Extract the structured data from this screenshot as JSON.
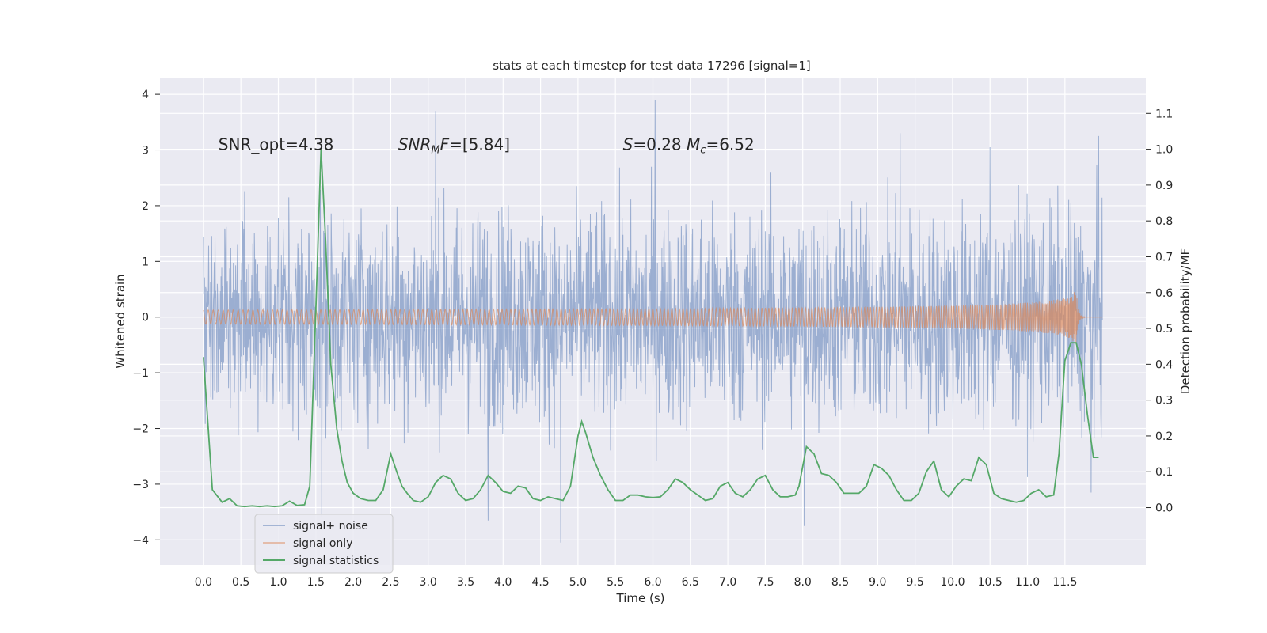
{
  "chart_data": {
    "type": "line",
    "title": "stats at each timestep for test data 17296 [signal=1]",
    "xlabel": "Time (s)",
    "ylabel": "Whitened strain",
    "y2label": "Detection probability/MF",
    "xlim": [
      -0.58,
      12.58
    ],
    "ylim": [
      -4.45,
      4.3
    ],
    "y2lim": [
      -0.16,
      1.2
    ],
    "x_ticks": [
      "0.0",
      "0.5",
      "1.0",
      "1.5",
      "2.0",
      "2.5",
      "3.0",
      "3.5",
      "4.0",
      "4.5",
      "5.0",
      "5.5",
      "6.0",
      "6.5",
      "7.0",
      "7.5",
      "8.0",
      "8.5",
      "9.0",
      "9.5",
      "10.0",
      "10.5",
      "11.0",
      "11.5"
    ],
    "y_ticks": [
      "4",
      "3",
      "2",
      "1",
      "0",
      "−1",
      "−2",
      "−3",
      "−4"
    ],
    "y2_ticks": [
      "1.1",
      "1.0",
      "0.9",
      "0.8",
      "0.7",
      "0.6",
      "0.5",
      "0.4",
      "0.3",
      "0.2",
      "0.1",
      "0.0"
    ],
    "grid": true,
    "legend_position": "lower-left",
    "annotations": [
      {
        "text": "SNR_opt=4.38",
        "x": 0.2,
        "y": 3.1
      },
      {
        "text": "SNR_MF=[5.84]",
        "x": 2.6,
        "y": 3.1,
        "html": "<tspan font-style='italic'>SNR</tspan><tspan font-style='italic' font-size='13' dy='4'>M</tspan><tspan font-style='italic' dy='-4'>F</tspan><tspan>=[5.84]</tspan>"
      },
      {
        "text": "S=0.28   M_c=6.52",
        "x": 5.6,
        "y": 3.1,
        "html": "<tspan font-style='italic'>S</tspan><tspan>=0.28   </tspan><tspan font-style='italic'>M</tspan><tspan font-style='italic' font-size='13' dy='4'>c</tspan><tspan dy='-4'>=6.52</tspan>"
      }
    ],
    "series": [
      {
        "name": "signal+ noise",
        "color": "#4c72b0",
        "axis": "left",
        "description": "dense whitened strain noise over 0–12 s, roughly ±1.8 with spikes to about ±3.9",
        "spikes": [
          [
            1.58,
            -3.6
          ],
          [
            3.1,
            3.7
          ],
          [
            3.8,
            -3.65
          ],
          [
            4.77,
            -4.05
          ],
          [
            6.03,
            3.9
          ],
          [
            8.02,
            -3.75
          ],
          [
            9.3,
            3.3
          ],
          [
            10.5,
            3.05
          ],
          [
            11.95,
            3.25
          ],
          [
            11.85,
            -3.15
          ]
        ]
      },
      {
        "name": "signal only",
        "color": "#dd8452",
        "axis": "left",
        "description": "chirp waveform, near zero growing in amplitude toward about ±0.5 at 11.65 s"
      },
      {
        "name": "signal statistics",
        "color": "#55a868",
        "axis": "right",
        "x": [
          0.0,
          0.12,
          0.25,
          0.35,
          0.45,
          0.55,
          0.65,
          0.75,
          0.85,
          0.95,
          1.05,
          1.15,
          1.25,
          1.35,
          1.42,
          1.5,
          1.57,
          1.63,
          1.7,
          1.78,
          1.85,
          1.92,
          2.0,
          2.1,
          2.2,
          2.3,
          2.4,
          2.5,
          2.58,
          2.65,
          2.72,
          2.8,
          2.9,
          3.0,
          3.1,
          3.2,
          3.3,
          3.4,
          3.5,
          3.6,
          3.7,
          3.8,
          3.9,
          4.0,
          4.1,
          4.2,
          4.3,
          4.4,
          4.5,
          4.6,
          4.7,
          4.8,
          4.9,
          5.0,
          5.05,
          5.1,
          5.2,
          5.3,
          5.4,
          5.5,
          5.6,
          5.7,
          5.8,
          5.9,
          6.0,
          6.1,
          6.2,
          6.3,
          6.4,
          6.5,
          6.6,
          6.7,
          6.8,
          6.9,
          7.0,
          7.1,
          7.2,
          7.3,
          7.4,
          7.5,
          7.6,
          7.7,
          7.8,
          7.9,
          7.95,
          8.05,
          8.15,
          8.25,
          8.35,
          8.45,
          8.55,
          8.65,
          8.75,
          8.85,
          8.95,
          9.05,
          9.15,
          9.25,
          9.35,
          9.45,
          9.55,
          9.65,
          9.75,
          9.85,
          9.95,
          10.05,
          10.15,
          10.25,
          10.35,
          10.45,
          10.55,
          10.65,
          10.75,
          10.85,
          10.95,
          11.05,
          11.15,
          11.25,
          11.35,
          11.42,
          11.5,
          11.58,
          11.65,
          11.72,
          11.8,
          11.88,
          11.95
        ],
        "values": [
          0.42,
          0.05,
          0.015,
          0.025,
          0.005,
          0.003,
          0.005,
          0.003,
          0.005,
          0.003,
          0.005,
          0.018,
          0.006,
          0.008,
          0.06,
          0.55,
          1.0,
          0.75,
          0.4,
          0.22,
          0.13,
          0.07,
          0.04,
          0.025,
          0.02,
          0.02,
          0.05,
          0.15,
          0.1,
          0.06,
          0.04,
          0.02,
          0.015,
          0.03,
          0.07,
          0.09,
          0.08,
          0.04,
          0.02,
          0.025,
          0.05,
          0.09,
          0.07,
          0.045,
          0.04,
          0.06,
          0.055,
          0.025,
          0.02,
          0.03,
          0.025,
          0.02,
          0.06,
          0.2,
          0.24,
          0.21,
          0.14,
          0.09,
          0.05,
          0.02,
          0.02,
          0.035,
          0.035,
          0.03,
          0.028,
          0.03,
          0.05,
          0.08,
          0.07,
          0.05,
          0.035,
          0.02,
          0.025,
          0.06,
          0.07,
          0.04,
          0.03,
          0.05,
          0.08,
          0.09,
          0.05,
          0.03,
          0.03,
          0.035,
          0.06,
          0.17,
          0.15,
          0.095,
          0.09,
          0.07,
          0.04,
          0.04,
          0.04,
          0.06,
          0.12,
          0.11,
          0.09,
          0.05,
          0.02,
          0.02,
          0.04,
          0.1,
          0.13,
          0.05,
          0.03,
          0.06,
          0.08,
          0.075,
          0.14,
          0.12,
          0.04,
          0.025,
          0.02,
          0.015,
          0.02,
          0.04,
          0.05,
          0.03,
          0.035,
          0.15,
          0.41,
          0.46,
          0.46,
          0.4,
          0.26,
          0.14,
          0.14
        ]
      }
    ]
  }
}
